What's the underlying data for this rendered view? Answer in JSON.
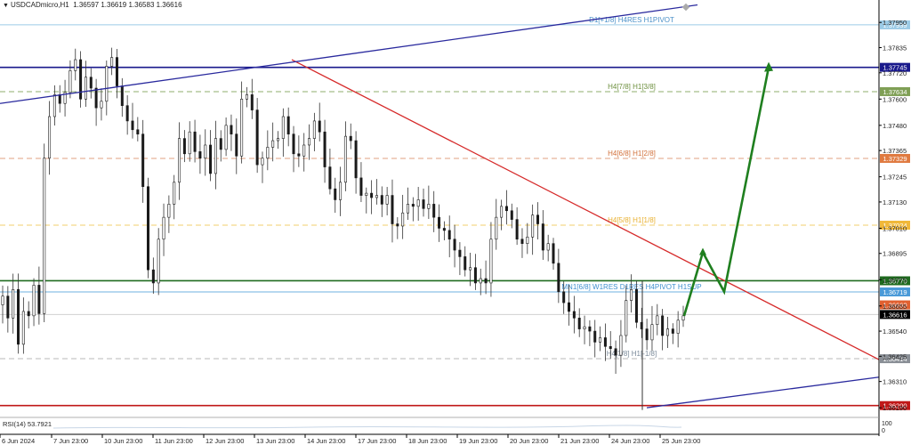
{
  "header": {
    "symbol": "USDCADmicro,H1",
    "ohlc": "1.36597 1.36619 1.36583 1.36616",
    "indicator": "RSI(14) 53.7921"
  },
  "colors": {
    "up_candle": "#1a1a1a",
    "bull_arrow": "#1f7f1f",
    "red_line": "#d62a2a",
    "blue_line": "#2a2a9e",
    "current_price": "#000000"
  },
  "chart_data": {
    "type": "candlestick",
    "ylim": [
      1.3615,
      1.3802
    ],
    "x_ticks": [
      "6 Jun 2024",
      "7 Jun 23:00",
      "10 Jun 23:00",
      "11 Jun 23:00",
      "12 Jun 23:00",
      "13 Jun 23:00",
      "14 Jun 23:00",
      "17 Jun 23:00",
      "18 Jun 23:00",
      "19 Jun 23:00",
      "20 Jun 23:00",
      "21 Jun 23:00",
      "24 Jun 23:00",
      "25 Jun 23:00"
    ],
    "y_ticks": [
      "1.37950",
      "1.37835",
      "1.37720",
      "1.37600",
      "1.37480",
      "1.37365",
      "1.37245",
      "1.37130",
      "1.37010",
      "1.36895",
      "1.36775",
      "1.36655",
      "1.36540",
      "1.36425",
      "1.36310",
      "1.36190"
    ],
    "price_path": [
      [
        1.367,
        1.366,
        1.3673,
        1.3648,
        1.3663,
        1.3661,
        1.3675,
        1.3662,
        1.3733,
        1.3752,
        1.3762,
        1.3758,
        1.3763,
        1.3773,
        1.3778,
        1.376,
        1.377,
        1.3765,
        1.3756,
        1.3759,
        1.3775,
        1.3779,
        1.3766,
        1.3757,
        1.375,
        1.3746,
        1.3744,
        1.372
      ],
      [
        1.3682,
        1.3676,
        1.3696,
        1.3706,
        1.3712,
        1.3722,
        1.3742,
        1.3735,
        1.3745,
        1.3736,
        1.3733,
        1.3739,
        1.3726,
        1.3742,
        1.3737,
        1.3748,
        1.3744,
        1.3734,
        1.376,
        1.3762,
        1.3755,
        1.373,
        1.3733,
        1.3738,
        1.3741,
        1.3742,
        1.3752,
        1.3744
      ],
      [
        1.3735,
        1.3734,
        1.3739,
        1.3742,
        1.375,
        1.3745,
        1.3729,
        1.3719,
        1.3714,
        1.3722,
        1.3743,
        1.3741,
        1.3724,
        1.3716,
        1.3717,
        1.3715,
        1.3716,
        1.3712,
        1.3716,
        1.3703,
        1.3702,
        1.3708,
        1.3712,
        1.3711,
        1.3714,
        1.371,
        1.3712,
        1.3706
      ],
      [
        1.3701,
        1.37,
        1.3696,
        1.3691,
        1.3688,
        1.3682,
        1.3683,
        1.3676,
        1.3678,
        1.3676,
        1.3696,
        1.3706,
        1.3711,
        1.3709,
        1.3705,
        1.3696,
        1.3694,
        1.3697,
        1.3707,
        1.3703,
        1.3691,
        1.3694,
        1.3685,
        1.3672,
        1.3667,
        1.3663,
        1.366,
        1.3655
      ],
      [
        1.3656,
        1.3654,
        1.3649,
        1.3651,
        1.3647,
        1.3646,
        1.3643,
        1.3652,
        1.3668,
        1.3673,
        1.3658,
        1.3655,
        1.365,
        1.3657,
        1.3661,
        1.3652,
        1.3655,
        1.3653,
        1.3659,
        1.3661
      ]
    ],
    "trendlines": [
      {
        "name": "red-descending-trendline",
        "color": "#d62a2a",
        "from": [
          "13 Jun 23:00",
          1.3778
        ],
        "to": [
          "right-edge",
          1.3641
        ]
      },
      {
        "name": "blue-ascending-trendline-upper",
        "color": "#2a2a9e",
        "from": [
          "6 Jun 2024",
          1.3758
        ],
        "to": [
          "25 Jun 23:00",
          1.3803
        ]
      },
      {
        "name": "blue-ascending-trendline-lower",
        "color": "#2a2a9e",
        "from": [
          "24 Jun 23:00",
          1.3619
        ],
        "to": [
          "right-edge",
          1.3633
        ]
      }
    ],
    "levels": [
      {
        "name": "level-d1-h4res",
        "label": "D1[+1/8] H4RES H1PIVOT",
        "value": 1.37939,
        "badge": "1.37939",
        "style": "solid",
        "color": "#9ccbe6",
        "label_color": "#4a90c8",
        "badge_color": "#9ccbe6"
      },
      {
        "name": "level-dark-blue",
        "label": "",
        "value": 1.37745,
        "badge": "1.37745",
        "style": "solid",
        "color": "#1a1a8c",
        "label_color": "#1a1a8c",
        "badge_color": "#1a1a8c"
      },
      {
        "name": "level-h4-7-8",
        "label": "H4[7/8] H1[3/8]",
        "value": 1.37634,
        "badge": "1.37634",
        "style": "dashed",
        "color": "#8fae6c",
        "label_color": "#6d8f3e",
        "badge_color": "#7f9f55"
      },
      {
        "name": "level-h4-6-8",
        "label": "H4[6/8] H1[2/8]",
        "value": 1.37329,
        "badge": "1.37329",
        "style": "dashed",
        "color": "#e0a080",
        "label_color": "#d2703a",
        "badge_color": "#e07a40"
      },
      {
        "name": "level-h4-5-8",
        "label": "H4[5/8] H1[1/8]",
        "value": 1.37024,
        "badge": "1.37024",
        "style": "dashed",
        "color": "#f2cf6e",
        "label_color": "#e8b030",
        "badge_color": "#f0b83a"
      },
      {
        "name": "level-green",
        "label": "",
        "value": 1.3677,
        "badge": "1.36770",
        "style": "solid",
        "color": "#1f6b1f",
        "label_color": "#1f6b1f",
        "badge_color": "#1f6b1f"
      },
      {
        "name": "level-mn1-w1res",
        "label": "MN1[6/8] W1RES D1RES H4PIVOT H1SUP",
        "value": 1.36719,
        "badge": "1.36719",
        "style": "solid",
        "color": "#6fb0e0",
        "label_color": "#3f8fce",
        "badge_color": "#4a9ad8"
      },
      {
        "name": "level-orange-small",
        "label": "",
        "value": 1.3666,
        "badge": "1.36660",
        "style": "none",
        "color": "#e06030",
        "label_color": "#e06030",
        "badge_color": "#e06030"
      },
      {
        "name": "level-current-price",
        "label": "",
        "value": 1.36616,
        "badge": "1.36616",
        "style": "solid",
        "color": "#d0d0d0",
        "label_color": "#000000",
        "badge_color": "#000000"
      },
      {
        "name": "level-h4-3-8",
        "label": "H4[3/8] H1[-1/8]",
        "value": 1.36414,
        "badge": "1.36414",
        "style": "dashed",
        "color": "#b8b8b8",
        "label_color": "#7a8a9a",
        "badge_color": "#8a8f96"
      },
      {
        "name": "level-red",
        "label": "",
        "value": 1.362,
        "badge": "1.36200",
        "style": "solid",
        "color": "#c01818",
        "label_color": "#c01818",
        "badge_color": "#c01818"
      }
    ],
    "projection": {
      "name": "bullish-projection-arrow",
      "color": "#1f7f1f",
      "points": [
        [
          1.3661,
          "25 Jun 23:00"
        ],
        [
          1.369,
          "+"
        ],
        [
          1.3672,
          "+"
        ],
        [
          1.37745,
          "+"
        ]
      ]
    },
    "rsi": {
      "label": "RSI(14) 53.7921",
      "value": 53.7921,
      "ticks": [
        "100",
        "0"
      ]
    }
  }
}
